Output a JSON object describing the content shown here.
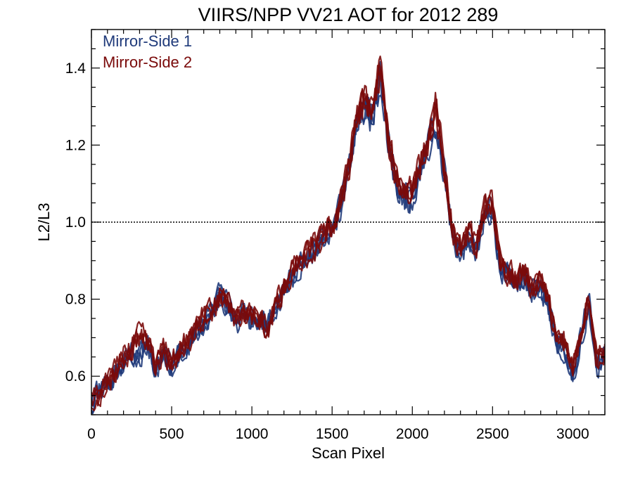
{
  "chart_data": {
    "type": "line",
    "title": "VIIRS/NPP VV21 AOT for 2012 289",
    "xlabel": "Scan Pixel",
    "ylabel": "L2/L3",
    "xlim": [
      0,
      3200
    ],
    "ylim": [
      0.5,
      1.5
    ],
    "x_ticks": [
      0,
      500,
      1000,
      1500,
      2000,
      2500,
      3000
    ],
    "y_ticks": [
      0.6,
      0.8,
      1.0,
      1.2,
      1.4
    ],
    "x_tick_labels": [
      "0",
      "500",
      "1000",
      "1500",
      "2000",
      "2500",
      "3000"
    ],
    "y_tick_labels": [
      "0.6",
      "0.8",
      "1.0",
      "1.2",
      "1.4"
    ],
    "reference_line": {
      "y": 1.0,
      "style": "dotted",
      "color": "#000000"
    },
    "legend_position": "top-left",
    "grid": false,
    "colors": {
      "mirror_side_1": "#1f3a7a",
      "mirror_side_2": "#7a0a0a"
    },
    "envelope_x": [
      0,
      50,
      100,
      150,
      200,
      250,
      300,
      350,
      400,
      450,
      500,
      550,
      600,
      650,
      700,
      750,
      800,
      850,
      900,
      950,
      1000,
      1050,
      1100,
      1150,
      1200,
      1250,
      1300,
      1350,
      1400,
      1450,
      1500,
      1550,
      1600,
      1650,
      1700,
      1750,
      1800,
      1850,
      1900,
      1950,
      2000,
      2050,
      2100,
      2150,
      2200,
      2250,
      2300,
      2350,
      2400,
      2450,
      2500,
      2550,
      2600,
      2650,
      2700,
      2750,
      2800,
      2850,
      2900,
      2950,
      3000,
      3050,
      3100,
      3150,
      3200
    ],
    "series": [
      {
        "name": "Mirror-Side 1",
        "y": [
          0.53,
          0.56,
          0.58,
          0.6,
          0.63,
          0.66,
          0.65,
          0.68,
          0.62,
          0.66,
          0.63,
          0.66,
          0.68,
          0.71,
          0.74,
          0.76,
          0.81,
          0.78,
          0.74,
          0.76,
          0.75,
          0.74,
          0.73,
          0.78,
          0.82,
          0.86,
          0.89,
          0.91,
          0.93,
          0.96,
          0.97,
          1.04,
          1.12,
          1.24,
          1.3,
          1.27,
          1.37,
          1.2,
          1.1,
          1.05,
          1.06,
          1.13,
          1.2,
          1.27,
          1.12,
          0.96,
          0.92,
          0.95,
          0.93,
          1.02,
          1.04,
          0.87,
          0.86,
          0.84,
          0.86,
          0.82,
          0.84,
          0.78,
          0.69,
          0.67,
          0.6,
          0.7,
          0.79,
          0.63,
          0.66
        ]
      },
      {
        "name": "Mirror-Side 2",
        "y": [
          0.54,
          0.55,
          0.59,
          0.61,
          0.65,
          0.67,
          0.71,
          0.69,
          0.63,
          0.67,
          0.64,
          0.67,
          0.69,
          0.72,
          0.75,
          0.77,
          0.8,
          0.79,
          0.75,
          0.77,
          0.76,
          0.75,
          0.72,
          0.79,
          0.83,
          0.87,
          0.9,
          0.92,
          0.94,
          0.97,
          0.98,
          1.05,
          1.13,
          1.26,
          1.32,
          1.28,
          1.4,
          1.22,
          1.12,
          1.07,
          1.08,
          1.16,
          1.22,
          1.3,
          1.14,
          0.98,
          0.93,
          0.97,
          0.94,
          1.03,
          1.05,
          0.88,
          0.87,
          0.85,
          0.87,
          0.83,
          0.85,
          0.79,
          0.7,
          0.68,
          0.62,
          0.71,
          0.8,
          0.64,
          0.67
        ]
      }
    ]
  }
}
